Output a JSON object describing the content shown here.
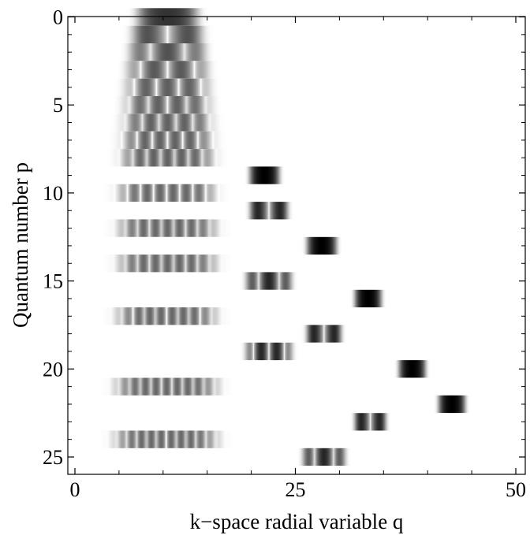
{
  "chart_data": {
    "type": "heatmap",
    "title": "",
    "xlabel": "k−space radial variable q",
    "ylabel": "Quantum number p",
    "xlim": [
      0,
      50
    ],
    "ylim": [
      0,
      26
    ],
    "y_inverted": true,
    "grid": false,
    "colormap": "white-to-black",
    "x_ticks": [
      "0",
      "25",
      "50"
    ],
    "y_ticks": [
      "0",
      "5",
      "10",
      "15",
      "20",
      "25"
    ],
    "rows": [
      {
        "p": 0,
        "q_min": 5.5,
        "q_max": 15.5,
        "lobes": 1,
        "peak": 0.8
      },
      {
        "p": 1,
        "q_min": 5.0,
        "q_max": 16.0,
        "lobes": 2,
        "peak": 0.72
      },
      {
        "p": 2,
        "q_min": 4.7,
        "q_max": 16.3,
        "lobes": 3,
        "peak": 0.68
      },
      {
        "p": 3,
        "q_min": 4.4,
        "q_max": 16.6,
        "lobes": 4,
        "peak": 0.65
      },
      {
        "p": 4,
        "q_min": 4.2,
        "q_max": 16.8,
        "lobes": 5,
        "peak": 0.63
      },
      {
        "p": 5,
        "q_min": 4.0,
        "q_max": 17.0,
        "lobes": 6,
        "peak": 0.62
      },
      {
        "p": 6,
        "q_min": 3.8,
        "q_max": 17.2,
        "lobes": 7,
        "peak": 0.62
      },
      {
        "p": 7,
        "q_min": 3.6,
        "q_max": 17.4,
        "lobes": 8,
        "peak": 0.62
      },
      {
        "p": 8,
        "q_min": 3.4,
        "q_max": 17.6,
        "lobes": 9,
        "peak": 0.62
      },
      {
        "p": 9,
        "q_min": 19.0,
        "q_max": 24.0,
        "lobes": 1,
        "peak": 1.0
      },
      {
        "p": 10,
        "q_min": 3.0,
        "q_max": 17.8,
        "lobes": 10,
        "peak": 0.6
      },
      {
        "p": 11,
        "q_min": 19.0,
        "q_max": 25.0,
        "lobes": 2,
        "peak": 0.9
      },
      {
        "p": 12,
        "q_min": 3.0,
        "q_max": 18.0,
        "lobes": 11,
        "peak": 0.6
      },
      {
        "p": 13,
        "q_min": 25.5,
        "q_max": 30.5,
        "lobes": 1,
        "peak": 1.0
      },
      {
        "p": 14,
        "q_min": 3.0,
        "q_max": 18.0,
        "lobes": 11,
        "peak": 0.6
      },
      {
        "p": 15,
        "q_min": 18.5,
        "q_max": 25.5,
        "lobes": 3,
        "peak": 0.85
      },
      {
        "p": 16,
        "q_min": 31.0,
        "q_max": 35.5,
        "lobes": 1,
        "peak": 1.0
      },
      {
        "p": 17,
        "q_min": 2.8,
        "q_max": 18.0,
        "lobes": 12,
        "peak": 0.6
      },
      {
        "p": 18,
        "q_min": 25.5,
        "q_max": 31.0,
        "lobes": 2,
        "peak": 0.9
      },
      {
        "p": 19,
        "q_min": 18.5,
        "q_max": 25.5,
        "lobes": 4,
        "peak": 0.85
      },
      {
        "p": 20,
        "q_min": 36.0,
        "q_max": 40.5,
        "lobes": 1,
        "peak": 1.0
      },
      {
        "p": 21,
        "q_min": 2.6,
        "q_max": 18.2,
        "lobes": 13,
        "peak": 0.6
      },
      {
        "p": 22,
        "q_min": 40.5,
        "q_max": 45.0,
        "lobes": 1,
        "peak": 1.0
      },
      {
        "p": 23,
        "q_min": 31.0,
        "q_max": 36.0,
        "lobes": 2,
        "peak": 0.9
      },
      {
        "p": 24,
        "q_min": 2.5,
        "q_max": 18.2,
        "lobes": 14,
        "peak": 0.6
      },
      {
        "p": 25,
        "q_min": 25.0,
        "q_max": 31.5,
        "lobes": 3,
        "peak": 0.85
      }
    ]
  }
}
